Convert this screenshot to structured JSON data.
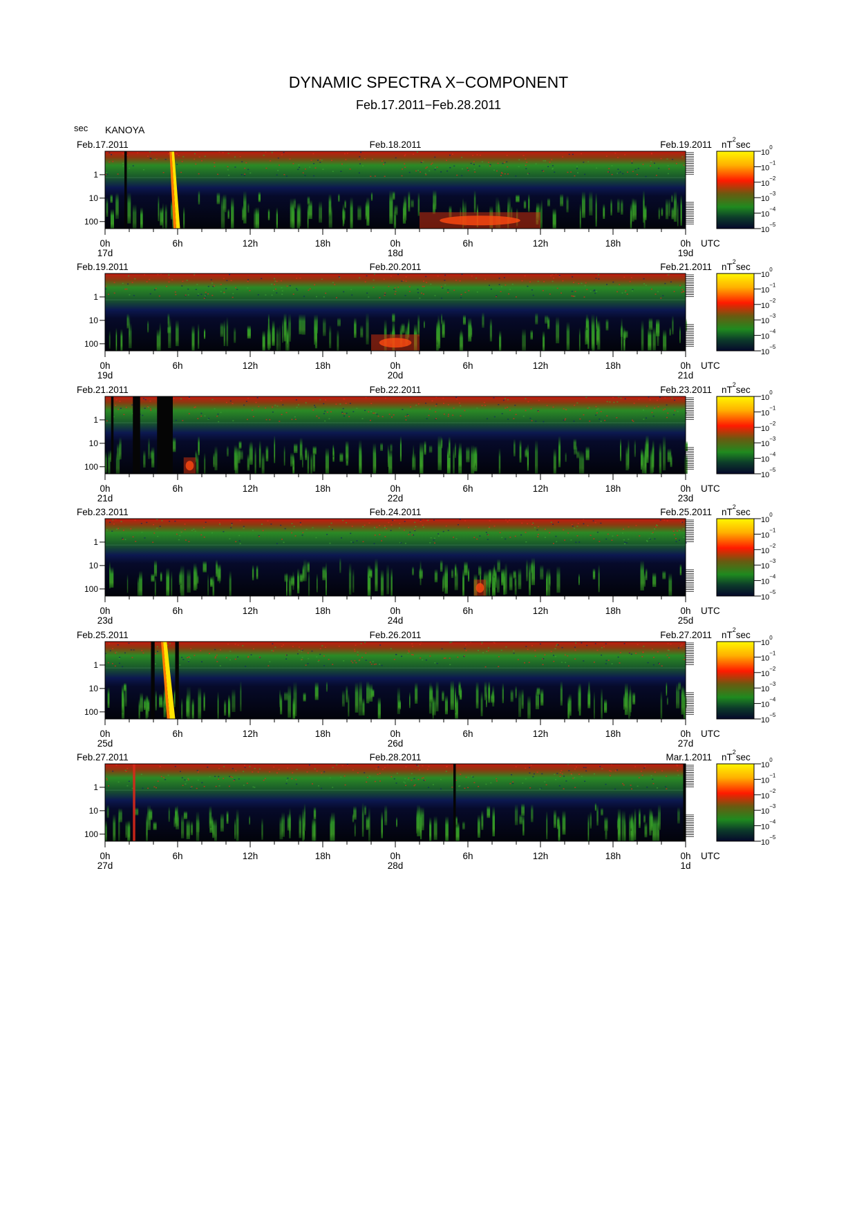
{
  "title": "DYNAMIC SPECTRA X−COMPONENT",
  "subtitle": "Feb.17.2011−Feb.28.2011",
  "y_unit": "sec",
  "station": "KANOYA",
  "colorbar_unit": "nT",
  "colorbar_unit_exp": "2",
  "colorbar_unit_suffix": "sec",
  "colorbar_ticks": [
    {
      "base": "10",
      "exp": "0"
    },
    {
      "base": "10",
      "exp": "−1"
    },
    {
      "base": "10",
      "exp": "−2"
    },
    {
      "base": "10",
      "exp": "−3"
    },
    {
      "base": "10",
      "exp": "−4"
    },
    {
      "base": "10",
      "exp": "−5"
    }
  ],
  "x_tick_labels": [
    "0h",
    "6h",
    "12h",
    "18h",
    "0h",
    "6h",
    "12h",
    "18h",
    "0h"
  ],
  "x_unit_label": "UTC",
  "y_tick_labels": [
    "1",
    "10",
    "100"
  ],
  "colors": {
    "background_noise": "#0b1030",
    "low_period": "#d01515",
    "mid_band": "#1f7a1f",
    "event_high": "#ffe000"
  },
  "chart_data": [
    {
      "type": "heatmap",
      "date_left": "Feb.17.2011",
      "date_mid": "Feb.18.2011",
      "date_right": "Feb.19.2011",
      "day_labels": [
        "17d",
        "18d",
        "19d"
      ],
      "x_range_hours": [
        0,
        48
      ],
      "y_scale": "log",
      "y_range_sec": [
        0.1,
        200
      ],
      "z_scale": "log",
      "z_range": [
        1e-05,
        1
      ],
      "events": [
        {
          "t0": 5.5,
          "t1": 6.2,
          "kind": "dispersive",
          "level": "high"
        },
        {
          "t0": 26,
          "t1": 36,
          "kind": "pc",
          "level": "mid-high"
        }
      ],
      "gaps": [
        [
          1.6,
          1.8
        ]
      ]
    },
    {
      "type": "heatmap",
      "date_left": "Feb.19.2011",
      "date_mid": "Feb.20.2011",
      "date_right": "Feb.21.2011",
      "day_labels": [
        "19d",
        "20d",
        "21d"
      ],
      "x_range_hours": [
        0,
        48
      ],
      "y_scale": "log",
      "y_range_sec": [
        0.1,
        200
      ],
      "z_scale": "log",
      "z_range": [
        1e-05,
        1
      ],
      "events": [
        {
          "t0": 22,
          "t1": 26,
          "kind": "pc",
          "level": "mid"
        }
      ],
      "gaps": []
    },
    {
      "type": "heatmap",
      "date_left": "Feb.21.2011",
      "date_mid": "Feb.22.2011",
      "date_right": "Feb.23.2011",
      "day_labels": [
        "21d",
        "22d",
        "23d"
      ],
      "x_range_hours": [
        0,
        48
      ],
      "y_scale": "log",
      "y_range_sec": [
        0.1,
        200
      ],
      "z_scale": "log",
      "z_range": [
        1e-05,
        1
      ],
      "events": [
        {
          "t0": 6.5,
          "t1": 7.5,
          "kind": "pc",
          "level": "mid-high"
        }
      ],
      "gaps": [
        [
          0.5,
          0.7
        ],
        [
          2.3,
          2.9
        ],
        [
          4.3,
          5.6
        ]
      ]
    },
    {
      "type": "heatmap",
      "date_left": "Feb.23.2011",
      "date_mid": "Feb.24.2011",
      "date_right": "Feb.25.2011",
      "day_labels": [
        "23d",
        "24d",
        "25d"
      ],
      "x_range_hours": [
        0,
        48
      ],
      "y_scale": "log",
      "y_range_sec": [
        0.1,
        200
      ],
      "z_scale": "log",
      "z_range": [
        1e-05,
        1
      ],
      "events": [
        {
          "t0": 30.5,
          "t1": 31.5,
          "kind": "pc",
          "level": "mid-high"
        }
      ],
      "gaps": []
    },
    {
      "type": "heatmap",
      "date_left": "Feb.25.2011",
      "date_mid": "Feb.26.2011",
      "date_right": "Feb.27.2011",
      "day_labels": [
        "25d",
        "26d",
        "27d"
      ],
      "x_range_hours": [
        0,
        48
      ],
      "y_scale": "log",
      "y_range_sec": [
        0.1,
        200
      ],
      "z_scale": "log",
      "z_range": [
        1e-05,
        1
      ],
      "events": [
        {
          "t0": 4.8,
          "t1": 5.8,
          "kind": "dispersive",
          "level": "high"
        }
      ],
      "gaps": [
        [
          3.8,
          4.1
        ],
        [
          5.8,
          6.1
        ]
      ]
    },
    {
      "type": "heatmap",
      "date_left": "Feb.27.2011",
      "date_mid": "Feb.28.2011",
      "date_right": "Mar.1.2011",
      "day_labels": [
        "27d",
        "28d",
        "1d"
      ],
      "x_range_hours": [
        0,
        48
      ],
      "y_scale": "log",
      "y_range_sec": [
        0.1,
        200
      ],
      "z_scale": "log",
      "z_range": [
        1e-05,
        1
      ],
      "events": [
        {
          "t0": 2.3,
          "t1": 2.5,
          "kind": "spike",
          "level": "mid-high"
        }
      ],
      "gaps": [
        [
          28.8,
          29.0
        ],
        [
          47.8,
          48.0
        ]
      ]
    }
  ]
}
